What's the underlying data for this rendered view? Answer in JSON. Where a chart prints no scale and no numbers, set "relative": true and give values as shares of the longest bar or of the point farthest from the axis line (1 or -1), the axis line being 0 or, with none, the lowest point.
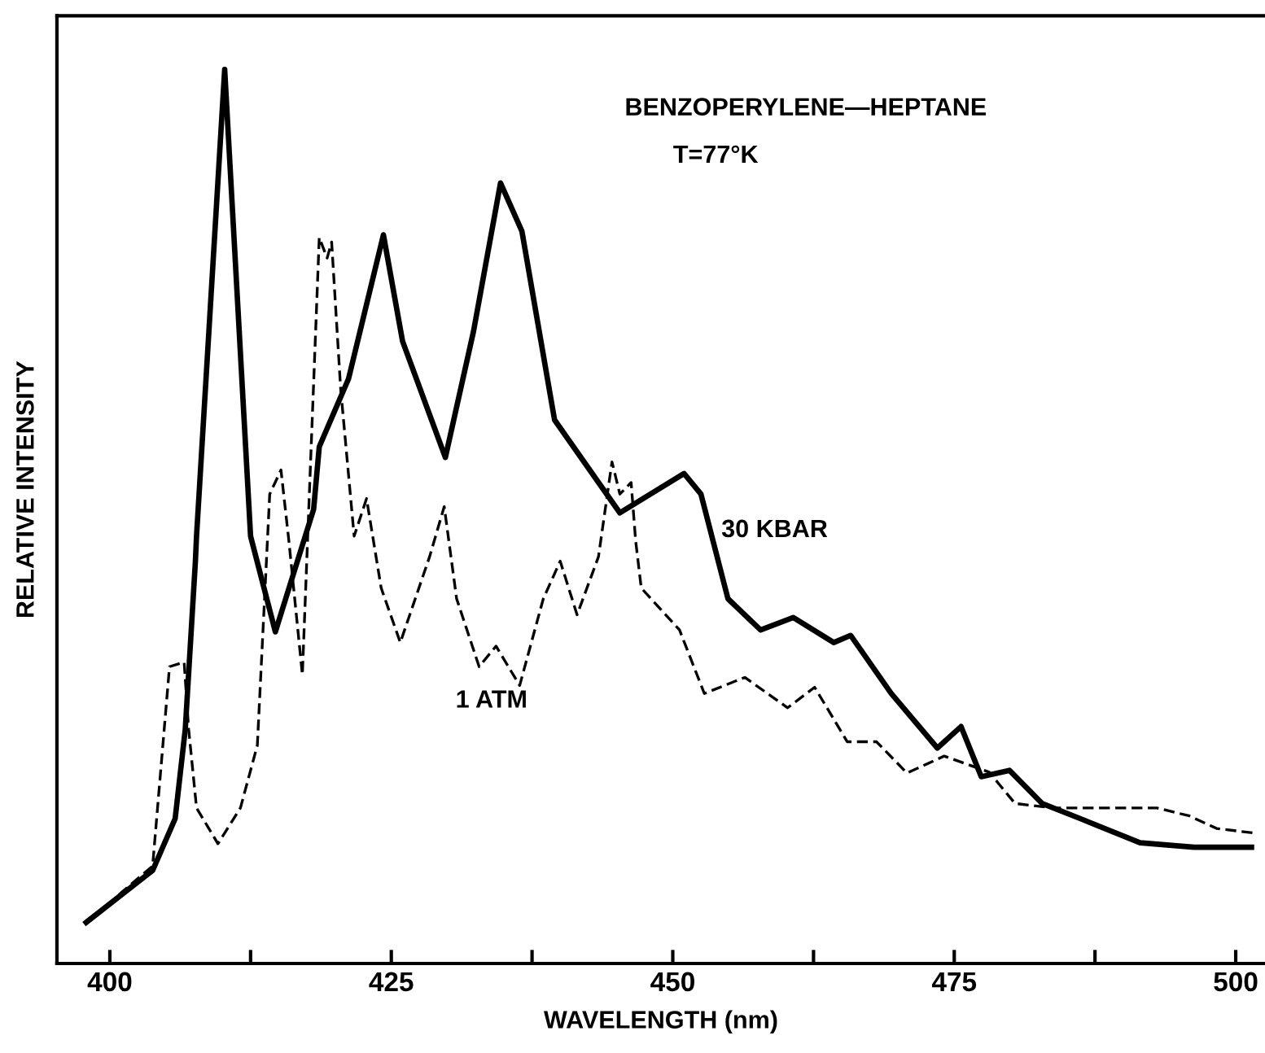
{
  "chart_data": {
    "type": "line",
    "title": "BENZOPERYLENE—HEPTANE",
    "subtitle": "T=77°K",
    "xlabel": "WAVELENGTH (nm)",
    "ylabel": "RELATIVE INTENSITY",
    "relative": true,
    "xlim": [
      395.3,
      502.6
    ],
    "xticks": [
      400,
      {
        "value": 412.5,
        "label": null
      },
      425,
      {
        "value": 437.5,
        "label": null
      },
      450,
      {
        "value": 462.5,
        "label": null
      },
      475,
      {
        "value": 487.5,
        "label": null
      },
      500
    ],
    "grid": false,
    "legend": false,
    "marker": "none",
    "series": [
      {
        "name": "30 KBAR",
        "color": "#000000",
        "line_style": "solid",
        "x": [
          397.9,
          403.8,
          405.8,
          406.7,
          407.6,
          407.7,
          410.2,
          412.5,
          414.7,
          418.1,
          418.6,
          421.2,
          424.3,
          426.0,
          429.8,
          432.3,
          434.7,
          436.6,
          439.5,
          445.3,
          451.0,
          452.5,
          454.9,
          457.8,
          460.7,
          464.3,
          465.8,
          469.4,
          473.5,
          475.6,
          477.4,
          479.9,
          482.8,
          486.2,
          491.5,
          496.3,
          501.4
        ],
        "values": [
          0.046,
          0.104,
          0.162,
          0.262,
          0.45,
          0.478,
          1.0,
          0.478,
          0.371,
          0.508,
          0.578,
          0.654,
          0.815,
          0.696,
          0.566,
          0.707,
          0.873,
          0.819,
          0.608,
          0.504,
          0.548,
          0.525,
          0.408,
          0.373,
          0.387,
          0.359,
          0.367,
          0.302,
          0.241,
          0.265,
          0.209,
          0.216,
          0.179,
          0.162,
          0.135,
          0.13,
          0.13
        ]
      },
      {
        "name": "1 ATM",
        "color": "#000000",
        "line_style": "dashed",
        "x": [
          400.8,
          403.8,
          405.3,
          406.6,
          407.0,
          407.7,
          409.6,
          411.6,
          413.1,
          414.2,
          415.2,
          415.9,
          417.1,
          418.6,
          419.3,
          419.7,
          420.5,
          421.7,
          422.8,
          424.1,
          425.8,
          428.4,
          429.7,
          430.8,
          432.8,
          434.3,
          436.4,
          438.5,
          440.0,
          441.5,
          443.4,
          444.6,
          445.3,
          446.3,
          446.7,
          447.2,
          450.6,
          452.8,
          456.4,
          460.2,
          462.6,
          465.5,
          468.1,
          470.8,
          474.1,
          478.1,
          480.4,
          483.8,
          493.0,
          495.9,
          498.3,
          501.6
        ],
        "values": [
          0.077,
          0.109,
          0.332,
          0.337,
          0.262,
          0.174,
          0.134,
          0.174,
          0.244,
          0.525,
          0.552,
          0.473,
          0.323,
          0.812,
          0.789,
          0.807,
          0.643,
          0.478,
          0.52,
          0.42,
          0.359,
          0.455,
          0.511,
          0.408,
          0.332,
          0.355,
          0.311,
          0.408,
          0.45,
          0.39,
          0.455,
          0.561,
          0.525,
          0.538,
          0.473,
          0.42,
          0.373,
          0.302,
          0.32,
          0.286,
          0.309,
          0.248,
          0.248,
          0.213,
          0.232,
          0.214,
          0.179,
          0.174,
          0.174,
          0.165,
          0.151,
          0.146
        ]
      }
    ]
  }
}
